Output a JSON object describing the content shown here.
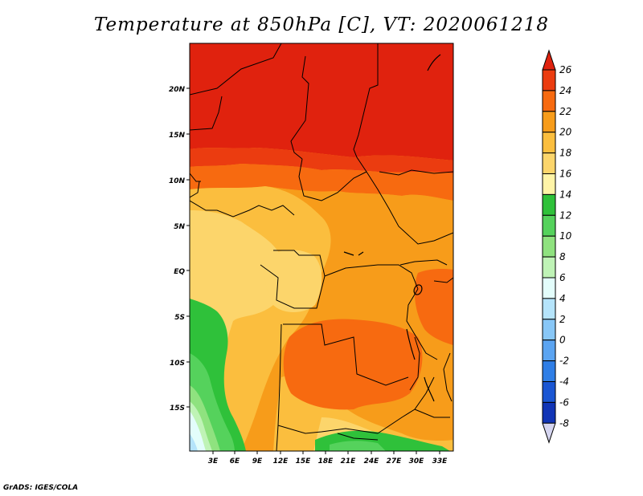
{
  "title": "Temperature at 850hPa [C], VT: 2020061218",
  "credit": "GrADS: IGES/COLA",
  "lat_ticks": [
    "20N",
    "15N",
    "10N",
    "5N",
    "EQ",
    "5S",
    "10S",
    "15S"
  ],
  "lon_ticks": [
    "3E",
    "6E",
    "9E",
    "12E",
    "15E",
    "18E",
    "21E",
    "24E",
    "27E",
    "30E",
    "33E"
  ],
  "colorbar": {
    "levels": [
      "26",
      "24",
      "22",
      "20",
      "18",
      "16",
      "14",
      "12",
      "10",
      "8",
      "6",
      "4",
      "2",
      "0",
      "-2",
      "-4",
      "-6",
      "-8"
    ],
    "colors": [
      "#e0220e",
      "#eb3c10",
      "#f76a10",
      "#f79c1a",
      "#fbbe3e",
      "#fcd56b",
      "#fff4a7",
      "#2fc13a",
      "#55d25c",
      "#8fe27f",
      "#bff3b6",
      "#e3fdfb",
      "#b5e4fb",
      "#88c7f7",
      "#5ba4f1",
      "#2f7ee6",
      "#1a56d3",
      "#1135b6",
      "#0b1a72"
    ],
    "top_color": "#e0220e",
    "bottom_color": "#d5d5f0"
  },
  "map": {
    "lat_range": [
      -19.5,
      24.8
    ],
    "lon_range": [
      0,
      33.8
    ]
  }
}
